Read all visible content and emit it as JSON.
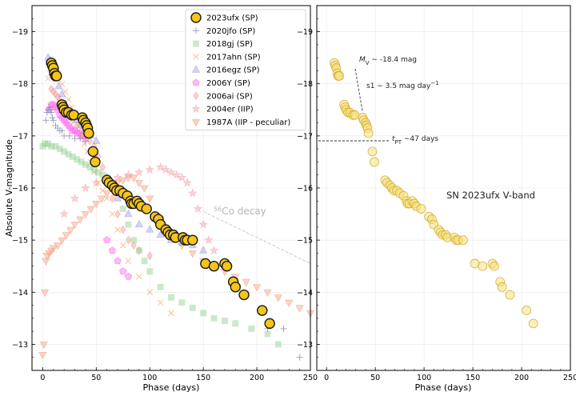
{
  "chart_data": [
    {
      "type": "scatter",
      "panel": "left",
      "xlabel": "Phase (days)",
      "ylabel": "Absolute V-magnitude",
      "xlim": [
        -10,
        250
      ],
      "ylim": [
        -12.5,
        -19.5
      ],
      "y_inverted": true,
      "xticks": [
        0,
        50,
        100,
        150,
        200,
        250
      ],
      "yticks": [
        -19,
        -18,
        -17,
        -16,
        -15,
        -14,
        -13
      ],
      "ytick_labels": [
        "−19",
        "−18",
        "−17",
        "−16",
        "−15",
        "−14",
        "−13"
      ],
      "grid": true,
      "legend": "top-right",
      "annotations": [
        {
          "text": "⁵⁶Co decay",
          "x": 152,
          "y": -15.6,
          "color": "#b0b0b0"
        }
      ],
      "decay_line": {
        "x": [
          150,
          250
        ],
        "y": [
          -15.55,
          -14.55
        ]
      },
      "series": [
        {
          "name": "2023ufx (SP)",
          "marker": "circle",
          "color": "#f5c518",
          "x": [
            8,
            9,
            10,
            11,
            12,
            13,
            18,
            19,
            20,
            22,
            24,
            27,
            29,
            37,
            38,
            40,
            41,
            42,
            43,
            47,
            49,
            60,
            62,
            65,
            67,
            69,
            72,
            75,
            79,
            82,
            83,
            85,
            88,
            90,
            92,
            97,
            105,
            108,
            110,
            115,
            117,
            119,
            122,
            124,
            131,
            133,
            135,
            140,
            152,
            160,
            170,
            172,
            178,
            180,
            188,
            205,
            212
          ],
          "y": [
            -18.4,
            -18.35,
            -18.3,
            -18.2,
            -18.15,
            -18.15,
            -17.6,
            -17.55,
            -17.5,
            -17.45,
            -17.45,
            -17.4,
            -17.4,
            -17.35,
            -17.3,
            -17.25,
            -17.2,
            -17.15,
            -17.05,
            -16.7,
            -16.5,
            -16.15,
            -16.1,
            -16.05,
            -16.0,
            -15.95,
            -15.95,
            -15.9,
            -15.85,
            -15.75,
            -15.7,
            -15.7,
            -15.75,
            -15.7,
            -15.65,
            -15.6,
            -15.45,
            -15.4,
            -15.3,
            -15.2,
            -15.15,
            -15.1,
            -15.1,
            -15.05,
            -15.05,
            -15.0,
            -15.0,
            -15.0,
            -14.55,
            -14.5,
            -14.55,
            -14.5,
            -14.2,
            -14.1,
            -13.95,
            -13.65,
            -13.4
          ]
        },
        {
          "name": "2020jfo (SP)",
          "marker": "plus",
          "color": "#8c8cb4",
          "x": [
            3,
            4,
            5,
            6,
            7,
            8,
            9,
            10,
            12,
            14,
            16,
            18,
            20,
            25,
            30,
            35,
            40,
            210,
            225,
            240
          ],
          "y": [
            -17.3,
            -17.45,
            -17.5,
            -17.55,
            -17.5,
            -17.45,
            -17.35,
            -17.3,
            -17.2,
            -17.15,
            -17.1,
            -17.1,
            -17.0,
            -17.0,
            -16.95,
            -16.95,
            -16.9,
            -13.3,
            -13.3,
            -12.75
          ]
        },
        {
          "name": "2018gj (SP)",
          "marker": "square",
          "color": "#8fcc8f",
          "x": [
            0,
            2,
            5,
            8,
            12,
            16,
            20,
            24,
            28,
            32,
            36,
            40,
            44,
            48,
            52,
            56,
            60,
            65,
            70,
            75,
            80,
            85,
            90,
            95,
            100,
            110,
            120,
            130,
            140,
            150,
            160,
            170,
            180,
            195,
            210,
            220
          ],
          "y": [
            -16.8,
            -16.85,
            -16.85,
            -16.8,
            -16.8,
            -16.75,
            -16.7,
            -16.65,
            -16.6,
            -16.55,
            -16.5,
            -16.45,
            -16.4,
            -16.35,
            -16.3,
            -16.25,
            -16.2,
            -16.0,
            -15.9,
            -15.6,
            -15.3,
            -15.0,
            -14.8,
            -14.6,
            -14.4,
            -14.1,
            -13.9,
            -13.8,
            -13.7,
            -13.6,
            -13.5,
            -13.45,
            -13.4,
            -13.3,
            -13.2,
            -13.0
          ]
        },
        {
          "name": "2017ahn (SP)",
          "marker": "x",
          "color": "#f5b07a",
          "x": [
            5,
            7,
            9,
            11,
            13,
            15,
            18,
            21,
            24,
            27,
            30,
            33,
            36,
            39,
            42,
            45,
            48,
            52,
            56,
            60,
            65,
            70,
            75,
            80,
            90,
            100,
            110,
            120
          ],
          "y": [
            -18.1,
            -18.2,
            -18.25,
            -18.3,
            -18.25,
            -18.2,
            -18.0,
            -17.85,
            -17.7,
            -17.55,
            -17.4,
            -17.2,
            -17.0,
            -16.85,
            -16.7,
            -16.5,
            -16.3,
            -16.1,
            -15.95,
            -15.8,
            -15.5,
            -15.2,
            -14.9,
            -14.6,
            -14.3,
            -14.0,
            -13.8,
            -13.6
          ]
        },
        {
          "name": "2016egz (SP)",
          "marker": "triangle",
          "color": "#9f9fe8",
          "x": [
            5,
            7,
            9,
            11,
            13,
            15,
            18,
            21,
            24,
            28,
            32,
            36,
            40,
            45,
            50,
            60,
            70,
            80,
            90,
            100,
            110,
            120,
            130,
            140,
            150
          ],
          "y": [
            -18.5,
            -18.45,
            -18.35,
            -18.25,
            -18.1,
            -17.95,
            -17.8,
            -17.6,
            -17.5,
            -17.4,
            -17.3,
            -17.2,
            -17.1,
            -17.0,
            -16.9,
            -16.2,
            -15.8,
            -15.5,
            -15.3,
            -15.2,
            -15.1,
            -15.0,
            -14.95,
            -14.9,
            -14.8
          ]
        },
        {
          "name": "2006Y (SP)",
          "marker": "pentagon",
          "color": "#ff66ee",
          "x": [
            6,
            8,
            10,
            12,
            14,
            16,
            18,
            20,
            22,
            24,
            26,
            28,
            30,
            32,
            34,
            36,
            38,
            40,
            60,
            65,
            70,
            75,
            80
          ],
          "y": [
            -17.5,
            -17.6,
            -17.6,
            -17.55,
            -17.5,
            -17.4,
            -17.35,
            -17.3,
            -17.25,
            -17.2,
            -17.15,
            -17.1,
            -17.1,
            -17.05,
            -17.05,
            -17.0,
            -17.0,
            -16.95,
            -15.0,
            -14.8,
            -14.6,
            -14.4,
            -14.3
          ]
        },
        {
          "name": "2006ai (SP)",
          "marker": "diamond",
          "color": "#f59a9a",
          "x": [
            8,
            10,
            12,
            14,
            16,
            18,
            20,
            24,
            28,
            32,
            36,
            40,
            44,
            48,
            52,
            56,
            60,
            65,
            70,
            75,
            80,
            85,
            90,
            100
          ],
          "y": [
            -17.9,
            -17.85,
            -17.8,
            -17.75,
            -17.7,
            -17.6,
            -17.5,
            -17.4,
            -17.3,
            -17.2,
            -17.1,
            -17.0,
            -16.9,
            -16.8,
            -16.6,
            -16.4,
            -16.2,
            -15.8,
            -15.5,
            -15.2,
            -15.0,
            -14.9,
            -14.8,
            -14.7
          ]
        },
        {
          "name": "2004er (IIP)",
          "marker": "star",
          "color": "#f5a0a8",
          "x": [
            20,
            30,
            40,
            50,
            60,
            70,
            80,
            90,
            100,
            110,
            115,
            120,
            125,
            130,
            135,
            140,
            145,
            150,
            155,
            160
          ],
          "y": [
            -15.5,
            -15.8,
            -16.0,
            -16.1,
            -16.15,
            -16.2,
            -16.25,
            -16.3,
            -16.35,
            -16.4,
            -16.35,
            -16.3,
            -16.25,
            -16.2,
            -16.1,
            -15.9,
            -15.6,
            -15.3,
            -15.0,
            -14.8
          ]
        },
        {
          "name": "1987A (IIP - peculiar)",
          "marker": "triangle-down",
          "color": "#f5a080",
          "x": [
            0,
            1,
            2,
            3,
            4,
            6,
            8,
            10,
            14,
            18,
            22,
            26,
            30,
            35,
            40,
            45,
            50,
            55,
            60,
            65,
            70,
            75,
            80,
            85,
            90,
            95,
            100,
            110,
            120,
            130,
            140,
            150,
            160,
            170,
            180,
            190,
            200,
            210,
            220,
            230,
            240,
            250
          ],
          "y": [
            -12.8,
            -13.0,
            -14.0,
            -14.6,
            -14.7,
            -14.75,
            -14.8,
            -14.85,
            -14.9,
            -15.0,
            -15.1,
            -15.2,
            -15.3,
            -15.4,
            -15.5,
            -15.6,
            -15.7,
            -15.8,
            -15.9,
            -16.0,
            -16.1,
            -16.15,
            -16.2,
            -16.2,
            -16.1,
            -16.0,
            -15.8,
            -15.4,
            -15.1,
            -14.9,
            -14.75,
            -14.6,
            -14.5,
            -14.4,
            -14.3,
            -14.2,
            -14.1,
            -14.0,
            -13.9,
            -13.8,
            -13.7,
            -13.6
          ]
        }
      ]
    },
    {
      "type": "scatter",
      "panel": "right",
      "title": "SN 2023ufx V-band",
      "xlabel": "Phase (days)",
      "ylabel": "",
      "xlim": [
        -10,
        250
      ],
      "ylim": [
        -12.5,
        -19.5
      ],
      "y_inverted": true,
      "xticks": [
        0,
        50,
        100,
        150,
        200,
        250
      ],
      "yticks": [
        -19,
        -18,
        -17,
        -16,
        -15,
        -14,
        -13
      ],
      "ytick_labels": [
        "−19",
        "−18",
        "−17",
        "−16",
        "−15",
        "−14",
        "−13"
      ],
      "grid": true,
      "annotations": [
        {
          "text": "M",
          "sub": "V",
          "rest": " ∼ -18.4 mag"
        },
        {
          "text": "s1 ∼ 3.5 mag day",
          "sup": "−1"
        },
        {
          "text": "t",
          "sub": "PT",
          "rest": " ∼47 days"
        }
      ],
      "series": [
        {
          "name": "SN 2023ufx V-band",
          "marker": "circle",
          "color": "#f7e07a",
          "x": [
            8,
            9,
            10,
            11,
            12,
            13,
            18,
            19,
            20,
            22,
            24,
            27,
            29,
            37,
            38,
            40,
            41,
            42,
            43,
            47,
            49,
            60,
            62,
            65,
            67,
            69,
            72,
            75,
            79,
            82,
            83,
            85,
            88,
            90,
            92,
            97,
            105,
            108,
            110,
            115,
            117,
            119,
            122,
            124,
            131,
            133,
            135,
            140,
            152,
            160,
            170,
            172,
            178,
            180,
            188,
            205,
            212
          ],
          "y": [
            -18.4,
            -18.35,
            -18.3,
            -18.2,
            -18.15,
            -18.15,
            -17.6,
            -17.55,
            -17.5,
            -17.45,
            -17.45,
            -17.4,
            -17.4,
            -17.35,
            -17.3,
            -17.25,
            -17.2,
            -17.15,
            -17.05,
            -16.7,
            -16.5,
            -16.15,
            -16.1,
            -16.05,
            -16.0,
            -15.95,
            -15.95,
            -15.9,
            -15.85,
            -15.75,
            -15.7,
            -15.7,
            -15.75,
            -15.7,
            -15.65,
            -15.6,
            -15.45,
            -15.4,
            -15.3,
            -15.2,
            -15.15,
            -15.1,
            -15.1,
            -15.05,
            -15.05,
            -15.0,
            -15.0,
            -15.0,
            -14.55,
            -14.5,
            -14.55,
            -14.5,
            -14.2,
            -14.1,
            -13.95,
            -13.65,
            -13.4
          ]
        }
      ]
    }
  ]
}
